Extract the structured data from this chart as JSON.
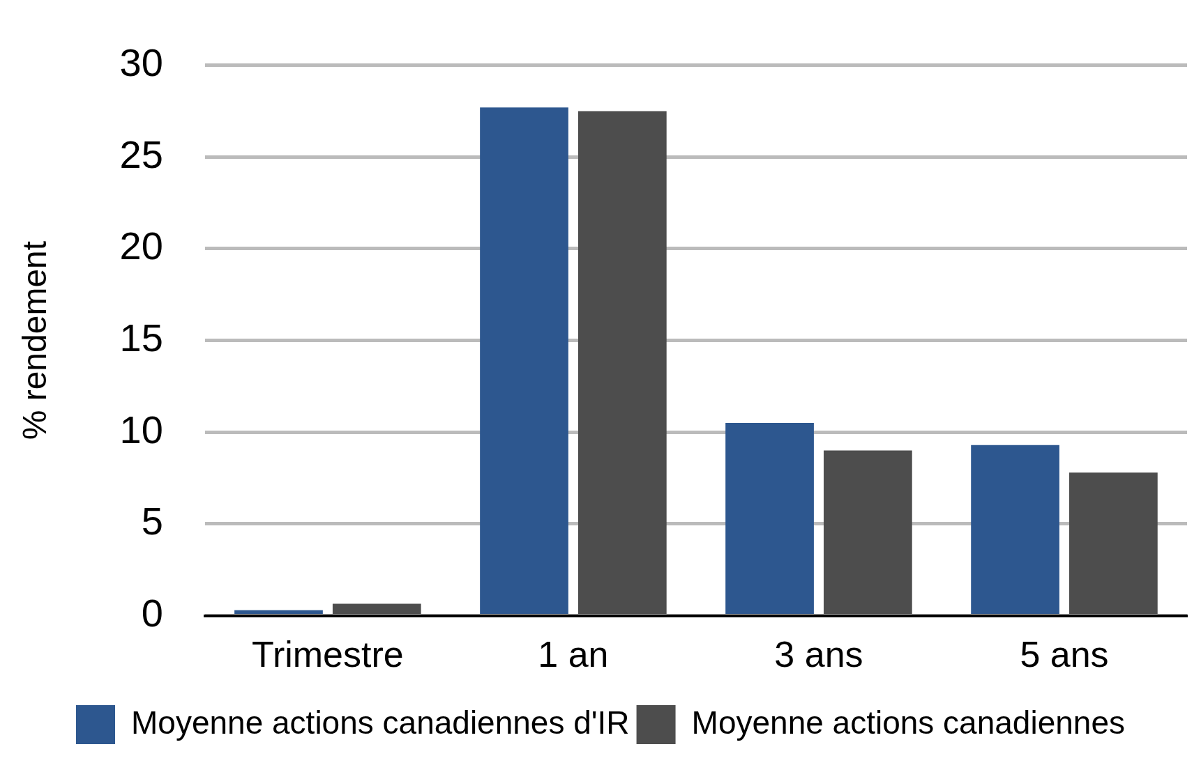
{
  "chart_data": {
    "type": "bar",
    "ylabel": "% rendement",
    "categories": [
      "Trimestre",
      "1 an",
      "3 ans",
      "5 ans"
    ],
    "series": [
      {
        "name": "Moyenne actions canadiennes d'IR",
        "color": "#2d578f",
        "values": [
          0.3,
          27.7,
          10.5,
          9.3
        ]
      },
      {
        "name": "Moyenne actions canadiennes",
        "color": "#4d4d4d",
        "values": [
          0.65,
          27.5,
          9.0,
          7.8
        ]
      }
    ],
    "ylim": [
      0,
      30
    ],
    "yticks": [
      0,
      5,
      10,
      15,
      20,
      25,
      30
    ],
    "grid": "y",
    "legend": "bottom"
  }
}
